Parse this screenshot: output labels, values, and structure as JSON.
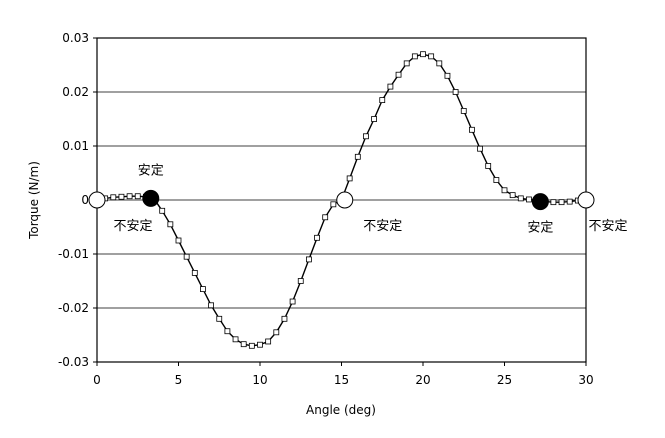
{
  "chart_data": {
    "type": "line",
    "xlabel": "Angle (deg)",
    "ylabel": "Torque (N/m)",
    "xlim": [
      0,
      30
    ],
    "ylim": [
      -0.03,
      0.03
    ],
    "xticks": [
      0,
      5,
      10,
      15,
      20,
      25,
      30
    ],
    "xtick_labels": [
      "0",
      "5",
      "10",
      "15",
      "20",
      "25",
      "30"
    ],
    "yticks": [
      0.03,
      0.02,
      0.01,
      0,
      -0.01,
      -0.02,
      -0.03
    ],
    "ytick_labels": [
      "0.03",
      "0.02",
      "0.01",
      "0",
      "-0.01",
      "-0.02",
      "-0.03"
    ],
    "grid": "horizontal",
    "series": [
      {
        "marker": "open-square",
        "x": [
          0,
          0.5,
          1,
          1.5,
          2,
          2.5,
          3,
          3.5,
          4,
          4.5,
          5,
          5.5,
          6,
          6.5,
          7,
          7.5,
          8,
          8.5,
          9,
          9.5,
          10,
          10.5,
          11,
          11.5,
          12,
          12.5,
          13,
          13.5,
          14,
          14.5,
          15,
          15.5,
          16,
          16.5,
          17,
          17.5,
          18,
          18.5,
          19,
          19.5,
          20,
          20.5,
          21,
          21.5,
          22,
          22.5,
          23,
          23.5,
          24,
          24.5,
          25,
          25.5,
          26,
          26.5,
          27,
          27.5,
          28,
          28.5,
          29,
          29.5,
          30
        ],
        "y": [
          0,
          0.0003,
          0.0005,
          0.0006,
          0.0007,
          0.0007,
          0.0006,
          0.0002,
          -0.002,
          -0.0045,
          -0.0075,
          -0.0105,
          -0.0135,
          -0.0165,
          -0.0195,
          -0.022,
          -0.0243,
          -0.0258,
          -0.0267,
          -0.027,
          -0.0268,
          -0.0262,
          -0.0245,
          -0.022,
          -0.0188,
          -0.015,
          -0.011,
          -0.007,
          -0.0032,
          -0.0008,
          0,
          0.004,
          0.008,
          0.0118,
          0.015,
          0.0185,
          0.021,
          0.0232,
          0.0253,
          0.0266,
          0.027,
          0.0266,
          0.0253,
          0.023,
          0.02,
          0.0165,
          0.013,
          0.0095,
          0.0063,
          0.0037,
          0.0018,
          0.0009,
          0.0003,
          0.0001,
          0,
          -0.0003,
          -0.0004,
          -0.0004,
          -0.0003,
          -0.0001,
          0
        ]
      }
    ],
    "equilibria": [
      {
        "x": 0,
        "y": 0,
        "type": "unstable",
        "label": "不安定"
      },
      {
        "x": 3.3,
        "y": 0.0003,
        "type": "stable",
        "label": "安定"
      },
      {
        "x": 15.2,
        "y": 0,
        "type": "unstable",
        "label": "不安定"
      },
      {
        "x": 27.2,
        "y": -0.0003,
        "type": "stable",
        "label": "安定"
      },
      {
        "x": 30,
        "y": 0,
        "type": "unstable",
        "label": "不安定"
      }
    ]
  }
}
